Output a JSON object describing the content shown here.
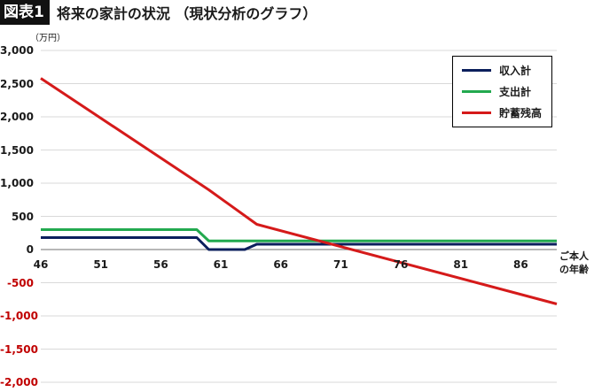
{
  "header": {
    "fig_label": "図表1",
    "title": "将来の家計の状況 （現状分析のグラフ）"
  },
  "chart_data": {
    "type": "line",
    "title": "将来の家計の状況 （現状分析のグラフ）",
    "unit_label": "（万円）",
    "xlabel": "ご本人の年齢",
    "ylabel": "",
    "xlim": [
      46,
      89
    ],
    "ylim": [
      -2000,
      3000
    ],
    "x_ticks": [
      "46",
      "51",
      "56",
      "61",
      "66",
      "71",
      "76",
      "81",
      "86"
    ],
    "y_ticks": [
      "3,000",
      "2,500",
      "2,000",
      "1,500",
      "1,000",
      "500",
      "0",
      "-500",
      "-1,000",
      "-1,500",
      "-2,000"
    ],
    "y_tick_values": [
      3000,
      2500,
      2000,
      1500,
      1000,
      500,
      0,
      -500,
      -1000,
      -1500,
      -2000
    ],
    "grid": true,
    "legend_position": "top-right",
    "series": [
      {
        "name": "収入計",
        "color": "#0b1f5c",
        "points": [
          [
            46,
            180
          ],
          [
            59,
            180
          ],
          [
            60,
            0
          ],
          [
            63,
            0
          ],
          [
            64,
            80
          ],
          [
            89,
            80
          ]
        ]
      },
      {
        "name": "支出計",
        "color": "#22a94f",
        "points": [
          [
            46,
            300
          ],
          [
            59,
            300
          ],
          [
            60,
            130
          ],
          [
            89,
            130
          ]
        ]
      },
      {
        "name": "貯蓄残高",
        "color": "#d51a1a",
        "points": [
          [
            46,
            2580
          ],
          [
            60,
            900
          ],
          [
            64,
            380
          ],
          [
            89,
            -820
          ]
        ]
      }
    ]
  },
  "xlabel_lines": [
    "ご本人",
    "の年齢"
  ]
}
